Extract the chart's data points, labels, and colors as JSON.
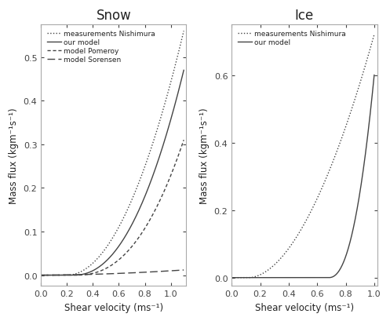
{
  "snow_title": "Snow",
  "ice_title": "Ice",
  "xlabel": "Shear velocity (ms⁻¹)",
  "ylabel": "Mass flux (kgm⁻¹s⁻¹)",
  "snow_xlim": [
    0.0,
    1.12
  ],
  "snow_ylim": [
    -0.025,
    0.575
  ],
  "ice_xlim": [
    0.0,
    1.02
  ],
  "ice_ylim": [
    -0.025,
    0.75
  ],
  "snow_xticks": [
    0.0,
    0.2,
    0.4,
    0.6,
    0.8,
    1.0
  ],
  "snow_yticks": [
    0.0,
    0.1,
    0.2,
    0.3,
    0.4,
    0.5
  ],
  "ice_xticks": [
    0.0,
    0.2,
    0.4,
    0.6,
    0.8,
    1.0
  ],
  "ice_yticks": [
    0.0,
    0.2,
    0.4,
    0.6
  ],
  "line_color": "#444444",
  "spine_color": "#aaaaaa",
  "background": "#ffffff",
  "legend_fontsize": 6.5,
  "title_fontsize": 12,
  "axis_label_fontsize": 8.5,
  "tick_fontsize": 8,
  "linewidth": 1.0
}
